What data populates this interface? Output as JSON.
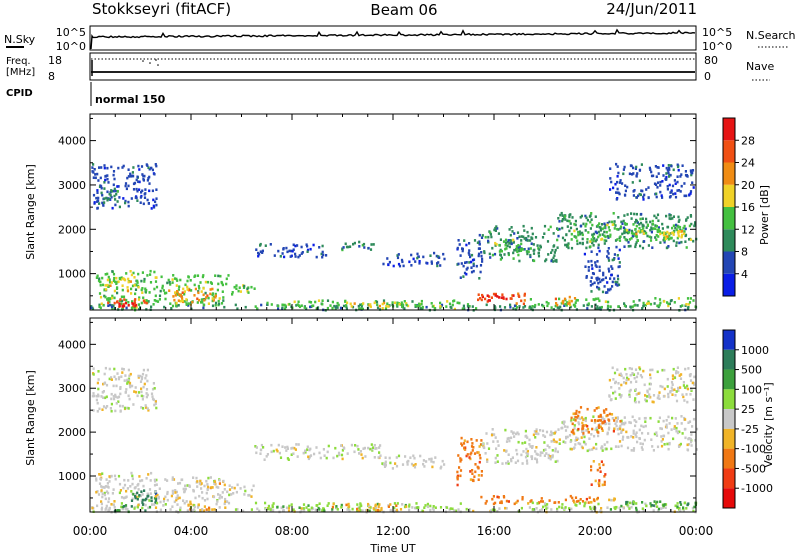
{
  "header": {
    "station": "Stokkseyri (fitACF)",
    "beam": "Beam 06",
    "date": "24/Jun/2011"
  },
  "status_panels": {
    "nsky_label": "N.Sky",
    "nsearch_label": "N.Search",
    "freq_label_1": "Freq.",
    "freq_label_2": "[MHz]",
    "nave_label": "Nave",
    "cpid_label": "CPID",
    "cpid_value": "normal 150",
    "noise_ticks_left": [
      "10^5",
      "10^0"
    ],
    "noise_ticks_right": [
      "10^5",
      "10^0"
    ],
    "freq_ticks": [
      "18",
      "8"
    ],
    "nave_ticks": [
      "80",
      "0"
    ]
  },
  "chart_data": [
    {
      "type": "heatmap",
      "name": "power",
      "ylabel": "Slant Range [km]",
      "xlabel": "",
      "xlim": [
        0,
        24
      ],
      "ylim": [
        180,
        4600
      ],
      "yticks": [
        "1000",
        "2000",
        "3000",
        "4000"
      ],
      "colorbar": {
        "label": "Power [dB]",
        "ticks": [
          "4",
          "8",
          "12",
          "16",
          "20",
          "24",
          "28"
        ],
        "colors": [
          "#0a1ee6",
          "#2346b4",
          "#2e8a5a",
          "#44c040",
          "#f0d228",
          "#f08c14",
          "#f05014",
          "#e61414"
        ]
      },
      "regions": [
        {
          "t0": 0.05,
          "t1": 2.6,
          "r0": 2500,
          "r1": 3500,
          "level": 1
        },
        {
          "t0": 0.1,
          "t1": 1.2,
          "r0": 2600,
          "r1": 2950,
          "level": 2
        },
        {
          "t0": 0.0,
          "t1": 24.0,
          "r0": 180,
          "r1": 330,
          "level": 2
        },
        {
          "t0": 0.2,
          "t1": 2.6,
          "r0": 250,
          "r1": 1100,
          "level": 3
        },
        {
          "t0": 0.6,
          "t1": 2.4,
          "r0": 280,
          "r1": 450,
          "level": 6
        },
        {
          "t0": 1.0,
          "t1": 1.8,
          "r0": 280,
          "r1": 380,
          "level": 7
        },
        {
          "t0": 0.5,
          "t1": 1.6,
          "r0": 600,
          "r1": 950,
          "level": 4
        },
        {
          "t0": 2.5,
          "t1": 5.5,
          "r0": 300,
          "r1": 1000,
          "level": 3
        },
        {
          "t0": 3.0,
          "t1": 5.0,
          "r0": 380,
          "r1": 700,
          "level": 5
        },
        {
          "t0": 5.5,
          "t1": 6.5,
          "r0": 550,
          "r1": 850,
          "level": 3
        },
        {
          "t0": 6.5,
          "t1": 15.0,
          "r0": 230,
          "r1": 420,
          "level": 3
        },
        {
          "t0": 10.0,
          "t1": 12.5,
          "r0": 280,
          "r1": 400,
          "level": 4
        },
        {
          "t0": 15.3,
          "t1": 17.3,
          "r0": 350,
          "r1": 580,
          "level": 6
        },
        {
          "t0": 15.7,
          "t1": 16.8,
          "r0": 420,
          "r1": 540,
          "level": 7
        },
        {
          "t0": 17.3,
          "t1": 24.0,
          "r0": 280,
          "r1": 480,
          "level": 3
        },
        {
          "t0": 18.3,
          "t1": 19.3,
          "r0": 320,
          "r1": 520,
          "level": 5
        },
        {
          "t0": 9.8,
          "t1": 11.2,
          "r0": 1500,
          "r1": 1750,
          "level": 2
        },
        {
          "t0": 6.5,
          "t1": 9.5,
          "r0": 1400,
          "r1": 1700,
          "level": 1
        },
        {
          "t0": 11.5,
          "t1": 14.0,
          "r0": 1200,
          "r1": 1500,
          "level": 1
        },
        {
          "t0": 14.5,
          "t1": 15.5,
          "r0": 900,
          "r1": 1900,
          "level": 1
        },
        {
          "t0": 15.5,
          "t1": 18.5,
          "r0": 1300,
          "r1": 2100,
          "level": 2
        },
        {
          "t0": 16.0,
          "t1": 17.5,
          "r0": 1500,
          "r1": 1800,
          "level": 3
        },
        {
          "t0": 18.5,
          "t1": 24.0,
          "r0": 1600,
          "r1": 2400,
          "level": 2
        },
        {
          "t0": 19.0,
          "t1": 23.8,
          "r0": 1750,
          "r1": 2150,
          "level": 3
        },
        {
          "t0": 21.5,
          "t1": 23.5,
          "r0": 1800,
          "r1": 2000,
          "level": 4
        },
        {
          "t0": 20.5,
          "t1": 23.9,
          "r0": 2700,
          "r1": 3500,
          "level": 1
        },
        {
          "t0": 19.5,
          "t1": 21.0,
          "r0": 600,
          "r1": 1600,
          "level": 1
        }
      ]
    },
    {
      "type": "heatmap",
      "name": "velocity",
      "ylabel": "Slant Range [km]",
      "xlabel": "Time UT",
      "xlim": [
        0,
        24
      ],
      "ylim": [
        180,
        4600
      ],
      "xticks": [
        "00:00",
        "04:00",
        "08:00",
        "12:00",
        "16:00",
        "20:00",
        "00:00"
      ],
      "yticks": [
        "1000",
        "2000",
        "3000",
        "4000"
      ],
      "colorbar": {
        "label": "Velocity [m s⁻¹]",
        "ticks": [
          "1000",
          "500",
          "100",
          "25",
          "-25",
          "-100",
          "-500",
          "-1000"
        ],
        "colors": [
          "#1432c8",
          "#2d7d5a",
          "#3ca03c",
          "#8cdc3c",
          "#c8c8c8",
          "#f0b428",
          "#f07814",
          "#f03c14",
          "#e60a0a"
        ]
      },
      "regions": [
        {
          "t0": 0.05,
          "t1": 2.6,
          "r0": 2500,
          "r1": 3500,
          "level": 4
        },
        {
          "t0": 0.0,
          "t1": 24.0,
          "r0": 180,
          "r1": 320,
          "level": 4
        },
        {
          "t0": 0.2,
          "t1": 2.6,
          "r0": 250,
          "r1": 1100,
          "level": 4
        },
        {
          "t0": 1.6,
          "t1": 2.6,
          "r0": 200,
          "r1": 700,
          "level": 1
        },
        {
          "t0": 0.9,
          "t1": 1.5,
          "r0": 200,
          "r1": 450,
          "level": 2
        },
        {
          "t0": 2.5,
          "t1": 5.5,
          "r0": 300,
          "r1": 1000,
          "level": 4
        },
        {
          "t0": 3.8,
          "t1": 5.0,
          "r0": 250,
          "r1": 380,
          "level": 5
        },
        {
          "t0": 4.2,
          "t1": 5.5,
          "r0": 750,
          "r1": 950,
          "level": 5
        },
        {
          "t0": 5.5,
          "t1": 6.5,
          "r0": 550,
          "r1": 850,
          "level": 4
        },
        {
          "t0": 6.5,
          "t1": 15.0,
          "r0": 230,
          "r1": 420,
          "level": 3
        },
        {
          "t0": 9.5,
          "t1": 12.5,
          "r0": 230,
          "r1": 400,
          "level": 5
        },
        {
          "t0": 15.3,
          "t1": 19.8,
          "r0": 380,
          "r1": 580,
          "level": 6
        },
        {
          "t0": 19.8,
          "t1": 20.8,
          "r0": 400,
          "r1": 550,
          "level": 5
        },
        {
          "t0": 17.3,
          "t1": 24.0,
          "r0": 250,
          "r1": 420,
          "level": 3
        },
        {
          "t0": 21.0,
          "t1": 24.0,
          "r0": 280,
          "r1": 450,
          "level": 2
        },
        {
          "t0": 6.5,
          "t1": 11.5,
          "r0": 1400,
          "r1": 1750,
          "level": 4
        },
        {
          "t0": 11.5,
          "t1": 14.0,
          "r0": 1200,
          "r1": 1500,
          "level": 4
        },
        {
          "t0": 14.5,
          "t1": 15.5,
          "r0": 800,
          "r1": 1900,
          "level": 6
        },
        {
          "t0": 15.5,
          "t1": 18.5,
          "r0": 1300,
          "r1": 2100,
          "level": 4
        },
        {
          "t0": 18.5,
          "t1": 24.0,
          "r0": 1600,
          "r1": 2400,
          "level": 4
        },
        {
          "t0": 19.0,
          "t1": 21.0,
          "r0": 2000,
          "r1": 2600,
          "level": 6
        },
        {
          "t0": 19.8,
          "t1": 20.4,
          "r0": 800,
          "r1": 1400,
          "level": 6
        },
        {
          "t0": 20.5,
          "t1": 23.9,
          "r0": 2700,
          "r1": 3500,
          "level": 4
        }
      ]
    }
  ]
}
